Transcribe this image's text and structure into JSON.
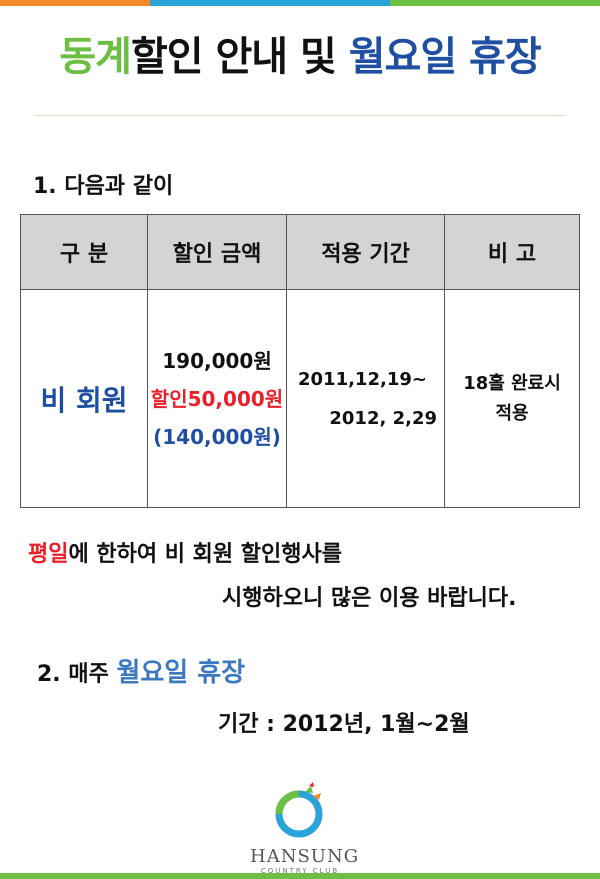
{
  "colors": {
    "green": "#6cbf43",
    "blue": "#1f4fa0",
    "red": "#e8202a",
    "orange": "#f08a2b",
    "sky": "#2aa3d8"
  },
  "title": {
    "part1": "동계",
    "part2": "할인 안내 및 ",
    "part3": "월요일 휴장"
  },
  "section1": {
    "heading": "1. 다음과 같이"
  },
  "table": {
    "headers": [
      "구 분",
      "할인 금액",
      "적용 기간",
      "비 고"
    ],
    "member": "비 회원",
    "price": "190,000원",
    "discount": "할인50,000원",
    "net": "(140,000원)",
    "period_start": "2011,12,19~",
    "period_end": "2012, 2,29",
    "note_line1": "18홀 완료시",
    "note_line2": "적용"
  },
  "notice": {
    "highlight": "평일",
    "rest": "에 한하여 비 회원 할인행사를",
    "line2": "시행하오니 많은 이용 바랍니다."
  },
  "section2": {
    "prefix": "2. 매주 ",
    "highlight": "월요일 휴장",
    "period": "기간 : 2012년, 1월~2월"
  },
  "logo": {
    "name": "HANSUNG",
    "sub": "COUNTRY CLUB",
    "icon": "hansung-emblem-icon"
  }
}
